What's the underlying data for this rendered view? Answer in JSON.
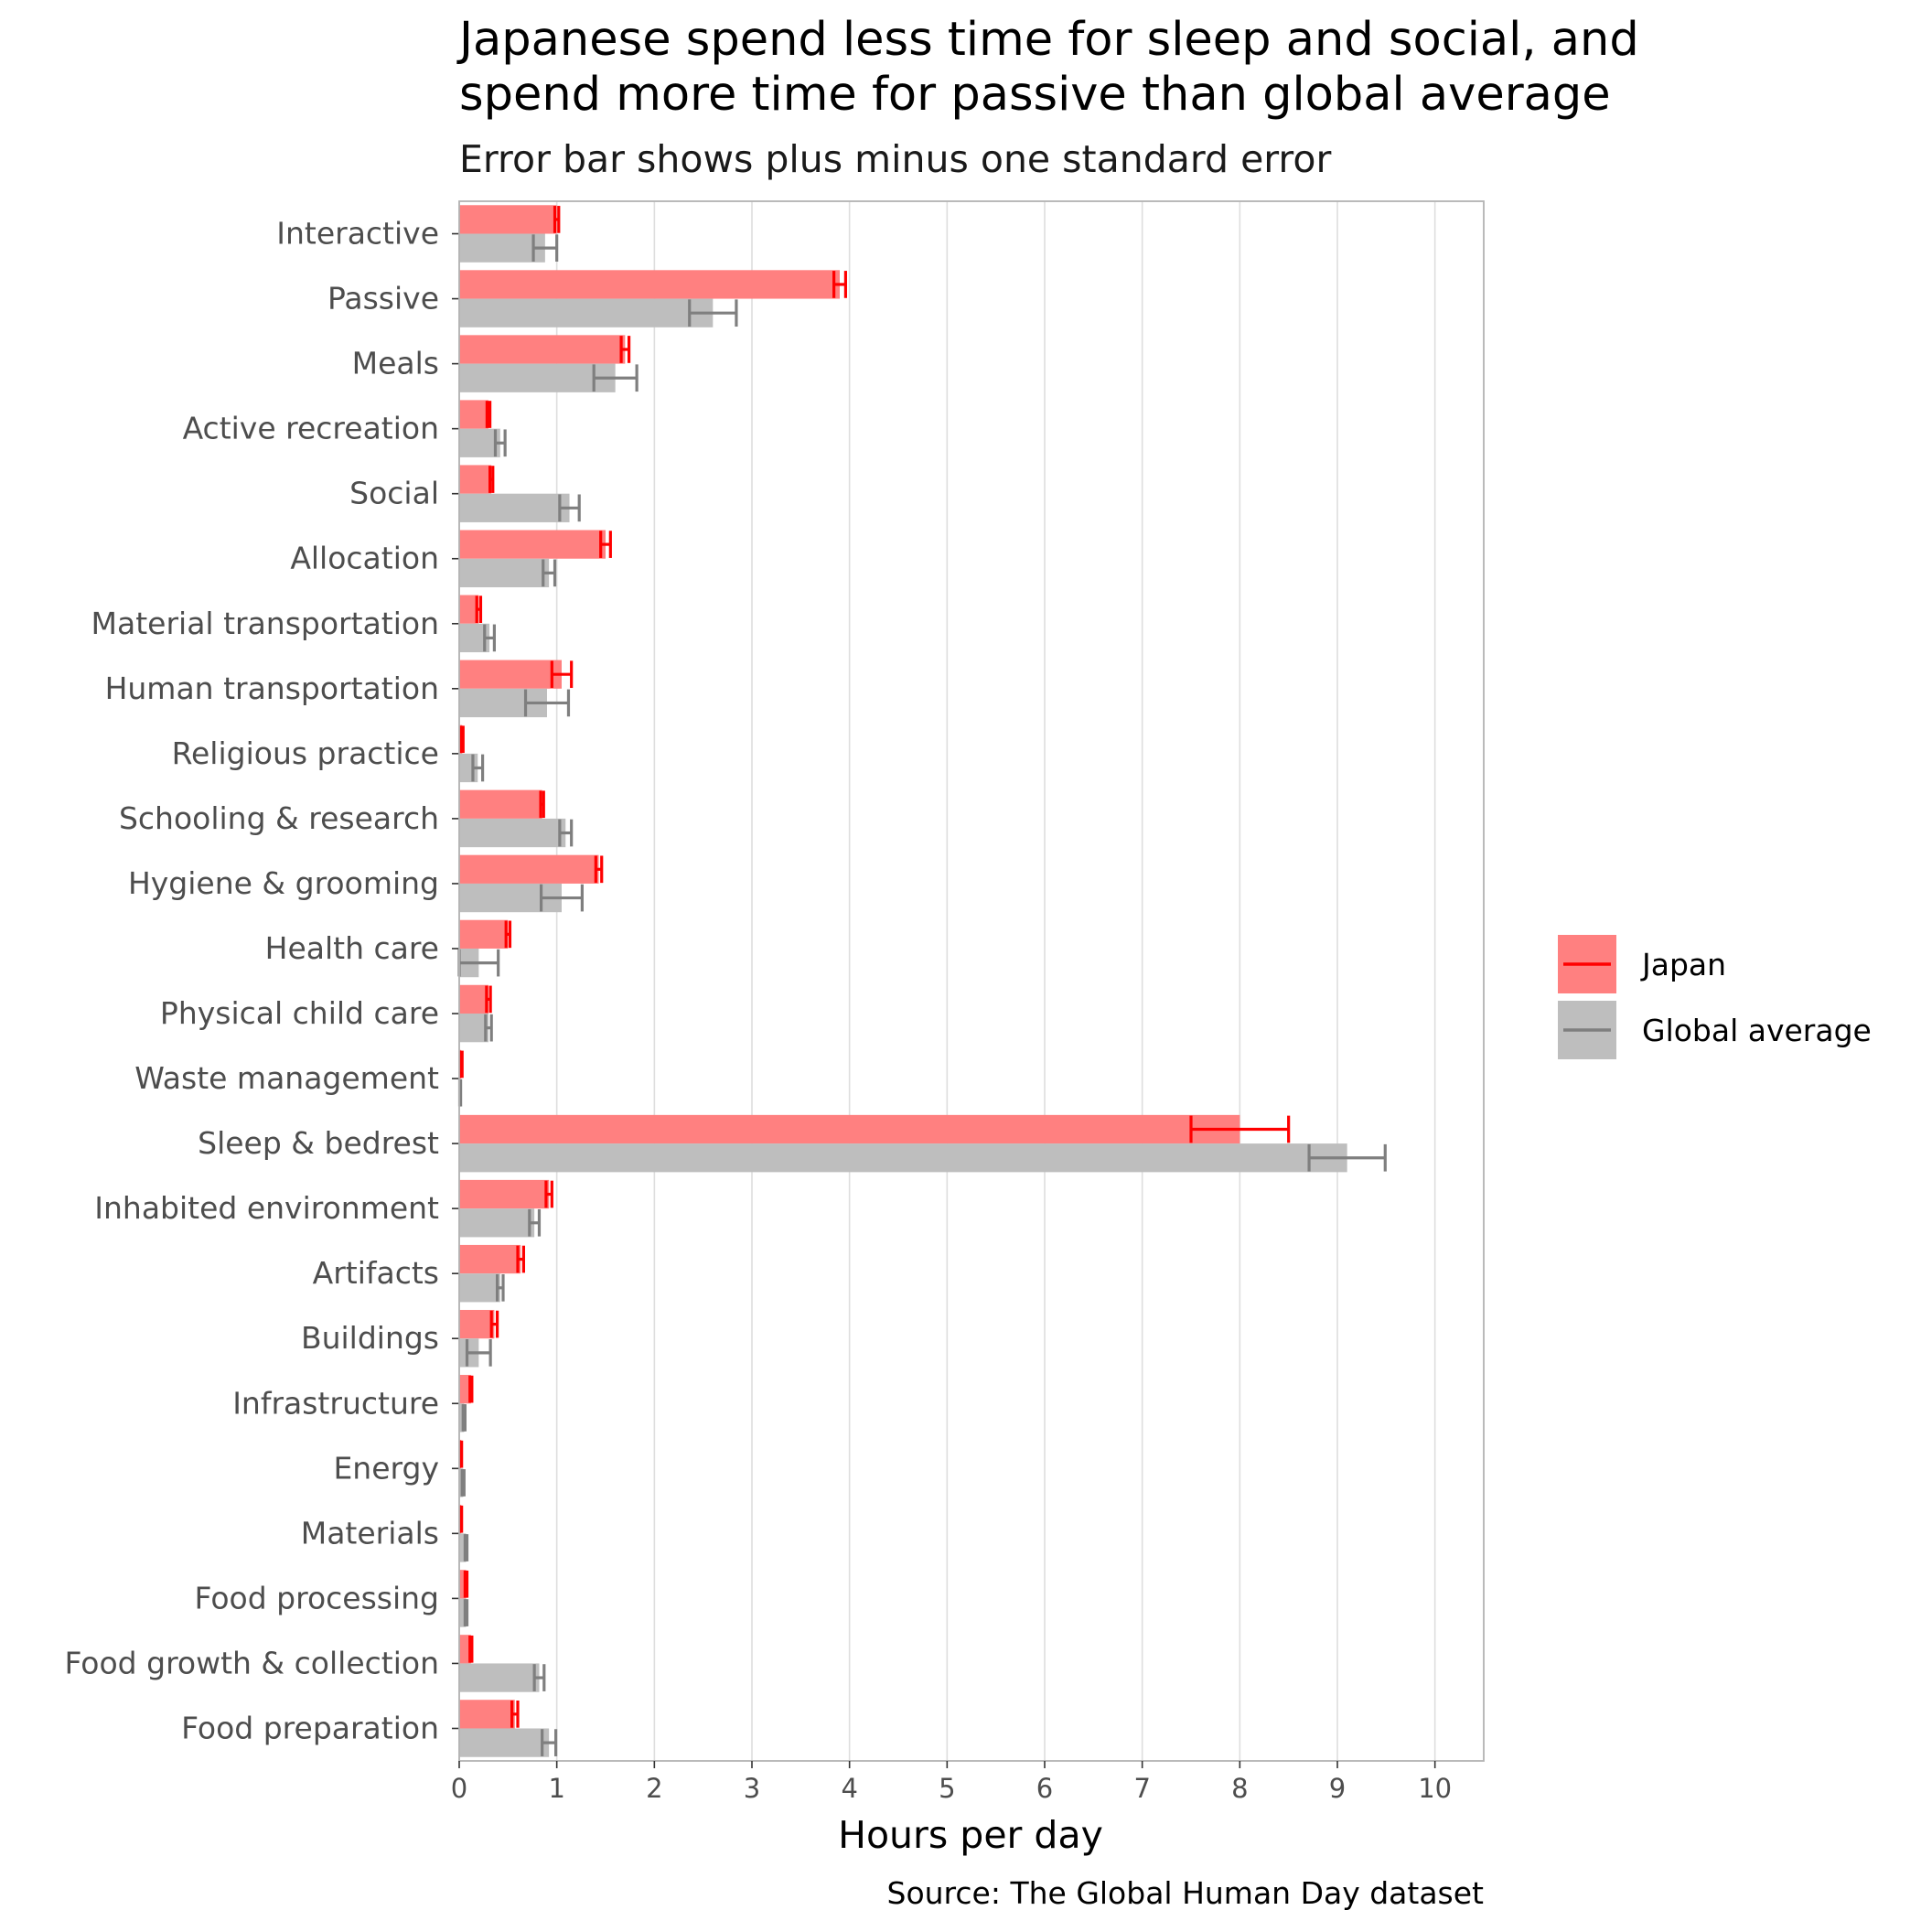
{
  "chart_data": {
    "type": "bar",
    "orientation": "horizontal",
    "title_line1": "Japanese spend less time for sleep and social, and",
    "title_line2": "spend more time for passive than global average",
    "subtitle": "Error bar shows plus minus one standard error",
    "xlabel": "Hours per day",
    "ylabel": "",
    "caption": "Source: The Global Human Day dataset",
    "xlim": [
      0,
      10.5
    ],
    "xticks": [
      0,
      1,
      2,
      3,
      4,
      5,
      6,
      7,
      8,
      9,
      10
    ],
    "grid": "vertical major gridlines",
    "legend_position": "right",
    "categories": [
      "Interactive",
      "Passive",
      "Meals",
      "Active recreation",
      "Social",
      "Allocation",
      "Material transportation",
      "Human transportation",
      "Religious practice",
      "Schooling & research",
      "Hygiene & grooming",
      "Health care",
      "Physical child care",
      "Waste management",
      "Sleep & bedrest",
      "Inhabited environment",
      "Artifacts",
      "Buildings",
      "Infrastructure",
      "Energy",
      "Materials",
      "Food processing",
      "Food growth & collection",
      "Food preparation"
    ],
    "series": [
      {
        "name": "Japan",
        "color": "#ff0000",
        "fill": "#ff8080",
        "values": [
          1.0,
          3.9,
          1.7,
          0.3,
          0.33,
          1.5,
          0.2,
          1.05,
          0.03,
          0.85,
          1.43,
          0.5,
          0.3,
          0.02,
          8.0,
          0.92,
          0.63,
          0.36,
          0.12,
          0.02,
          0.02,
          0.07,
          0.12,
          0.57
        ],
        "errors": [
          0.02,
          0.06,
          0.04,
          0.015,
          0.015,
          0.05,
          0.02,
          0.1,
          0.01,
          0.015,
          0.03,
          0.02,
          0.02,
          0.01,
          0.5,
          0.03,
          0.03,
          0.03,
          0.01,
          0.005,
          0.005,
          0.01,
          0.01,
          0.03
        ]
      },
      {
        "name": "Global average",
        "color": "#7f7f7f",
        "fill": "#bebebe",
        "values": [
          0.88,
          2.6,
          1.6,
          0.42,
          1.13,
          0.92,
          0.31,
          0.9,
          0.19,
          1.09,
          1.05,
          0.2,
          0.3,
          0.01,
          9.1,
          0.77,
          0.42,
          0.2,
          0.05,
          0.04,
          0.07,
          0.07,
          0.82,
          0.92
        ],
        "errors": [
          0.12,
          0.24,
          0.22,
          0.05,
          0.1,
          0.06,
          0.05,
          0.22,
          0.05,
          0.06,
          0.21,
          0.2,
          0.03,
          0.005,
          0.39,
          0.05,
          0.03,
          0.12,
          0.01,
          0.01,
          0.01,
          0.01,
          0.05,
          0.07
        ]
      }
    ]
  }
}
